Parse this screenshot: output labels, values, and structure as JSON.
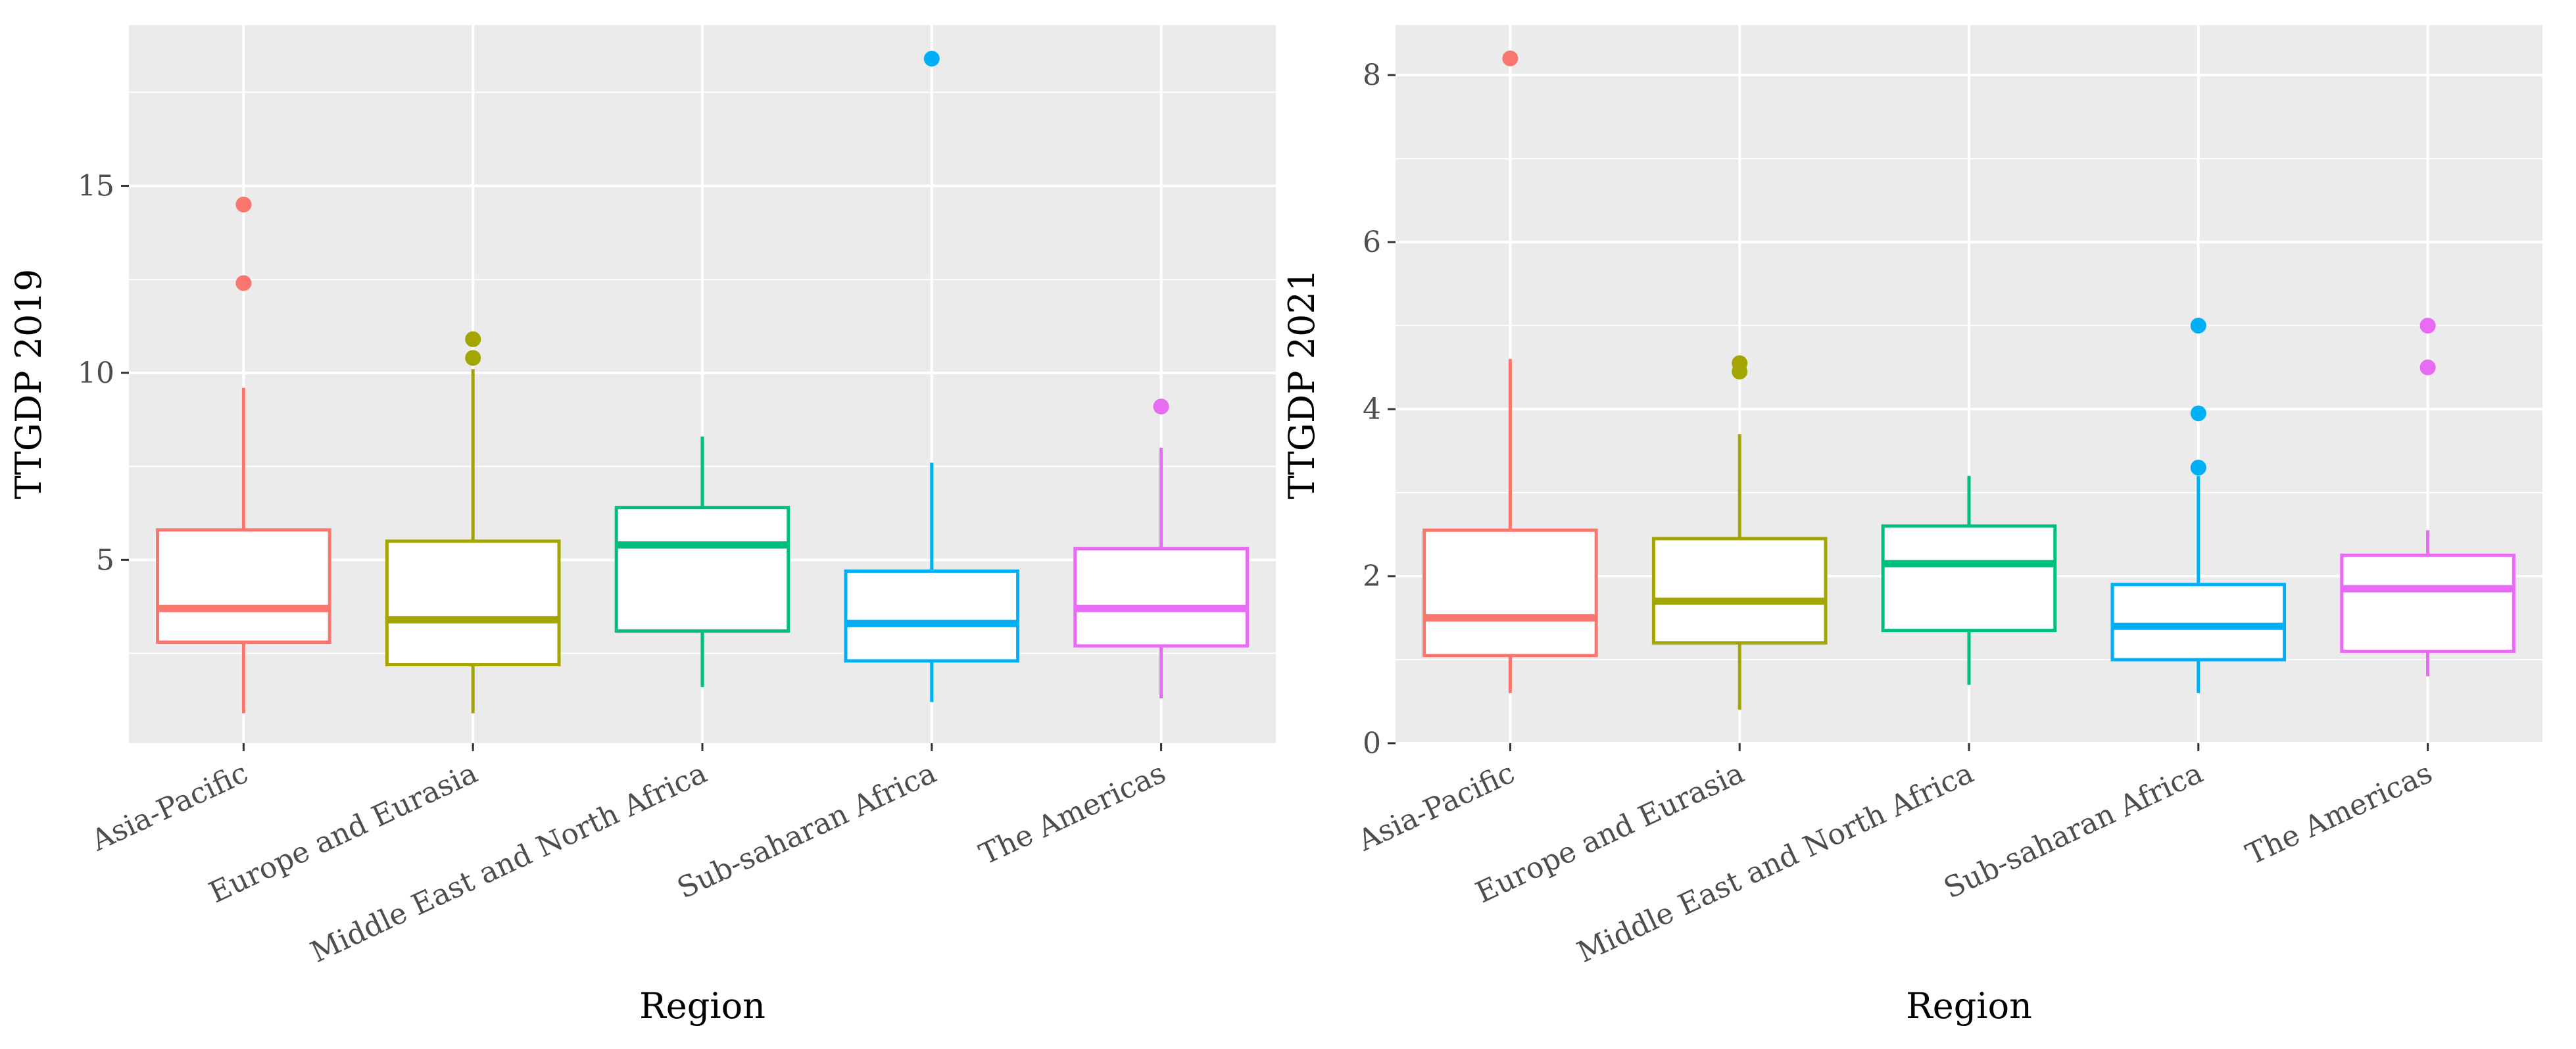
{
  "chart_data": [
    {
      "type": "boxplot",
      "title": "",
      "xlabel": "Region",
      "ylabel": "TTGDP 2019",
      "ylim": [
        0.1,
        19.3
      ],
      "y_ticks": [
        5,
        10,
        15
      ],
      "y_tick_labels": [
        "5",
        "10",
        "15"
      ],
      "grid": true,
      "legend": "none",
      "categories": [
        "Asia-Pacific",
        "Europe and Eurasia",
        "Middle East and North Africa",
        "Sub-saharan Africa",
        "The Americas"
      ],
      "boxes": [
        {
          "category": "Asia-Pacific",
          "whisker_low": 0.9,
          "q1": 2.8,
          "median": 3.7,
          "q3": 5.8,
          "whisker_high": 9.6,
          "outliers": [
            12.4,
            14.5
          ],
          "color": "#F8766D"
        },
        {
          "category": "Europe and Eurasia",
          "whisker_low": 0.9,
          "q1": 2.2,
          "median": 3.4,
          "q3": 5.5,
          "whisker_high": 10.1,
          "outliers": [
            10.4,
            10.9
          ],
          "color": "#A3A500"
        },
        {
          "category": "Middle East and North Africa",
          "whisker_low": 1.6,
          "q1": 3.1,
          "median": 5.4,
          "q3": 6.4,
          "whisker_high": 8.3,
          "outliers": [],
          "color": "#00BF7D"
        },
        {
          "category": "Sub-saharan Africa",
          "whisker_low": 1.2,
          "q1": 2.3,
          "median": 3.3,
          "q3": 4.7,
          "whisker_high": 7.6,
          "outliers": [
            18.4
          ],
          "color": "#00B0F6"
        },
        {
          "category": "The Americas",
          "whisker_low": 1.3,
          "q1": 2.7,
          "median": 3.7,
          "q3": 5.3,
          "whisker_high": 8.0,
          "outliers": [
            9.1
          ],
          "color": "#E76BF3"
        }
      ]
    },
    {
      "type": "boxplot",
      "title": "",
      "xlabel": "Region",
      "ylabel": "TTGDP 2021",
      "ylim": [
        0,
        8.6
      ],
      "y_ticks": [
        0,
        2,
        4,
        6,
        8
      ],
      "y_tick_labels": [
        "0",
        "2",
        "4",
        "6",
        "8"
      ],
      "grid": true,
      "legend": "none",
      "categories": [
        "Asia-Pacific",
        "Europe and Eurasia",
        "Middle East and North Africa",
        "Sub-saharan Africa",
        "The Americas"
      ],
      "boxes": [
        {
          "category": "Asia-Pacific",
          "whisker_low": 0.6,
          "q1": 1.05,
          "median": 1.5,
          "q3": 2.55,
          "whisker_high": 4.6,
          "outliers": [
            8.2
          ],
          "color": "#F8766D"
        },
        {
          "category": "Europe and Eurasia",
          "whisker_low": 0.4,
          "q1": 1.2,
          "median": 1.7,
          "q3": 2.45,
          "whisker_high": 3.7,
          "outliers": [
            4.45,
            4.55
          ],
          "color": "#A3A500"
        },
        {
          "category": "Middle East and North Africa",
          "whisker_low": 0.7,
          "q1": 1.35,
          "median": 2.15,
          "q3": 2.6,
          "whisker_high": 3.2,
          "outliers": [],
          "color": "#00BF7D"
        },
        {
          "category": "Sub-saharan Africa",
          "whisker_low": 0.6,
          "q1": 1.0,
          "median": 1.4,
          "q3": 1.9,
          "whisker_high": 3.2,
          "outliers": [
            3.3,
            3.95,
            5.0
          ],
          "color": "#00B0F6"
        },
        {
          "category": "The Americas",
          "whisker_low": 0.8,
          "q1": 1.1,
          "median": 1.85,
          "q3": 2.25,
          "whisker_high": 2.55,
          "outliers": [
            4.5,
            5.0
          ],
          "color": "#E76BF3"
        }
      ]
    }
  ]
}
